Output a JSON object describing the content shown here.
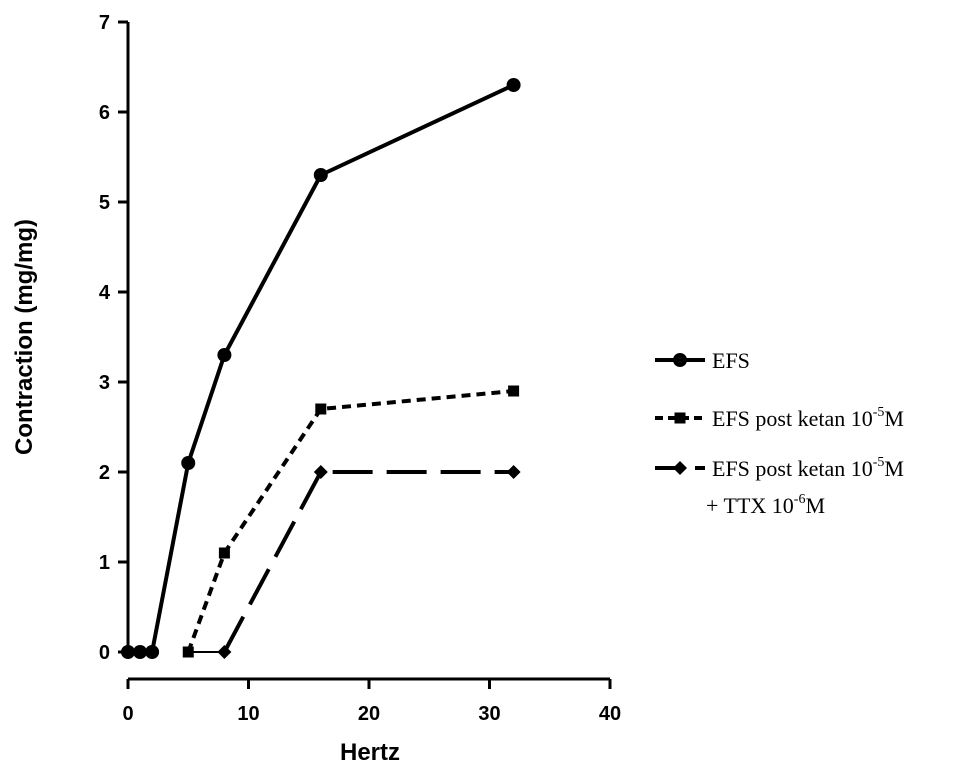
{
  "chart_data": {
    "type": "line",
    "xlabel": "Hertz",
    "ylabel": "Contraction (mg/mg)",
    "xlim": [
      0,
      40
    ],
    "ylim": [
      0,
      7
    ],
    "xticks": [
      "0",
      "10",
      "20",
      "30",
      "40"
    ],
    "yticks": [
      "0",
      "1",
      "2",
      "3",
      "4",
      "5",
      "6",
      "7"
    ],
    "grid": false,
    "legend_position": "right",
    "series": [
      {
        "key": "efs",
        "name": "EFS",
        "marker": "circle",
        "line_style": "solid",
        "color": "#000000",
        "x": [
          0,
          1,
          2,
          5,
          8,
          16,
          32
        ],
        "y": [
          0,
          0,
          0,
          2.1,
          3.3,
          5.3,
          6.3
        ]
      },
      {
        "key": "ketan",
        "name": "EFS post ketan 10-5M",
        "legend_parts": [
          "EFS post ketan 10",
          "-5",
          "M"
        ],
        "marker": "square",
        "line_style": "dotted",
        "color": "#000000",
        "x": [
          5,
          8,
          16,
          32
        ],
        "y": [
          0,
          1.1,
          2.7,
          2.9
        ]
      },
      {
        "key": "ttx",
        "name": "EFS post ketan 10-5M + TTX 10-6M",
        "legend_parts": [
          "EFS post ketan 10",
          "-5",
          "M"
        ],
        "legend_parts_line2": [
          "+ TTX 10",
          "-6",
          "M"
        ],
        "marker": "diamond",
        "line_style": "dashed",
        "color": "#000000",
        "x": [
          8,
          16,
          32
        ],
        "y": [
          0,
          2.0,
          2.0
        ]
      }
    ],
    "connector": {
      "color": "#000000",
      "x": [
        5,
        8
      ],
      "y": [
        0,
        0
      ]
    }
  }
}
